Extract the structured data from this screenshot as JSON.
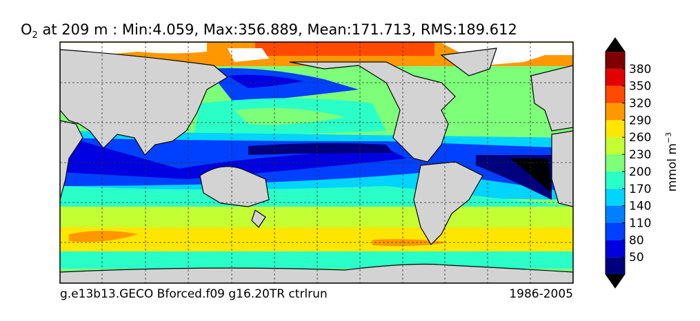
{
  "title": {
    "symbol": "O",
    "subscript": "2",
    "text": " at 209 m : Min:4.059, Max:356.889, Mean:171.713, RMS:189.612"
  },
  "footer": {
    "left": "g.e13b13.GECO Bforced.f09 g16.20TR ctrlrun",
    "right": "1986-2005"
  },
  "colorbar": {
    "label": "mmol m",
    "label_superscript": "−3",
    "limits": [
      20,
      410
    ],
    "ticks": [
      50,
      80,
      110,
      140,
      170,
      200,
      230,
      260,
      290,
      320,
      350,
      380
    ],
    "colors": [
      "#00007f",
      "#0000e0",
      "#0040ff",
      "#0080ff",
      "#00d4ff",
      "#2bffc8",
      "#7dff7a",
      "#c4ff33",
      "#ffe600",
      "#ff9800",
      "#ff4a00",
      "#e30000",
      "#7f0000"
    ],
    "extend_color": "#000000"
  }
}
